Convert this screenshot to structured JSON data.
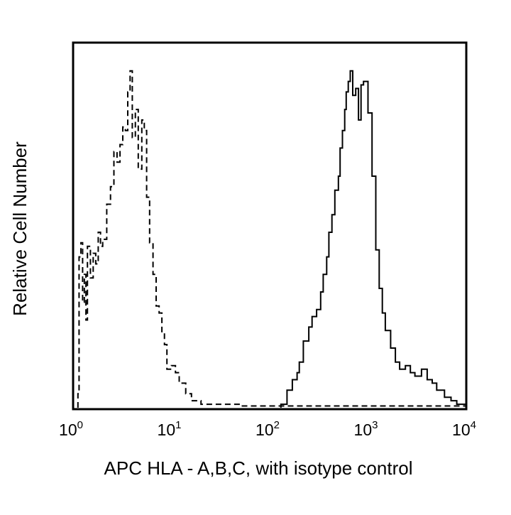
{
  "chart_data": {
    "type": "line",
    "title": "",
    "xlabel": "APC HLA - A,B,C, with isotype control",
    "ylabel": "Relative Cell Number",
    "x_scale": "log",
    "xlim": [
      1,
      10000
    ],
    "ylim": [
      0,
      100
    ],
    "grid": false,
    "legend": "none",
    "x_ticks": [
      {
        "base": "10",
        "exp": "0",
        "value": 1
      },
      {
        "base": "10",
        "exp": "1",
        "value": 10
      },
      {
        "base": "10",
        "exp": "2",
        "value": 100
      },
      {
        "base": "10",
        "exp": "3",
        "value": 1000
      },
      {
        "base": "10",
        "exp": "4",
        "value": 10000
      }
    ],
    "series": [
      {
        "style": "dashed",
        "color": "#000000",
        "x": [
          1.12,
          1.15,
          1.2,
          1.25,
          1.3,
          1.35,
          1.4,
          1.5,
          1.6,
          1.7,
          1.8,
          1.9,
          2.0,
          2.2,
          2.4,
          2.6,
          2.8,
          3.0,
          3.2,
          3.4,
          3.6,
          3.8,
          4.0,
          4.3,
          4.6,
          5.0,
          5.3,
          5.6,
          6.0,
          6.5,
          7.0,
          7.5,
          8.0,
          8.5,
          9.0,
          10.0,
          11,
          12,
          14,
          16,
          20,
          30,
          50,
          100,
          200,
          500,
          1000,
          3000,
          10000
        ],
        "y": [
          4,
          43,
          47,
          30,
          38,
          25,
          46,
          37,
          44,
          41,
          50,
          46,
          48,
          58,
          63,
          73,
          70,
          75,
          80,
          79,
          90,
          96,
          77,
          85,
          68,
          82,
          79,
          60,
          47,
          38,
          29,
          27,
          21,
          18,
          11,
          12,
          10,
          7,
          4,
          2,
          1,
          1,
          0.5,
          0.5,
          0.5,
          0.5,
          0.5,
          0.5,
          0.5
        ]
      },
      {
        "style": "solid",
        "color": "#000000",
        "x": [
          130,
          150,
          170,
          190,
          200,
          220,
          250,
          270,
          300,
          330,
          350,
          380,
          400,
          430,
          460,
          500,
          520,
          550,
          580,
          600,
          630,
          660,
          700,
          750,
          800,
          850,
          900,
          1000,
          1100,
          1200,
          1300,
          1400,
          1500,
          1700,
          1900,
          2100,
          2400,
          2700,
          3000,
          3500,
          4000,
          4500,
          5000,
          6000,
          7000,
          8000,
          9000,
          10000
        ],
        "y": [
          1,
          5,
          8,
          10,
          13,
          19,
          23,
          26,
          28,
          33,
          38,
          43,
          50,
          55,
          62,
          66,
          74,
          79,
          85,
          90,
          93,
          96,
          89,
          91,
          82,
          92,
          93,
          84,
          66,
          45,
          34,
          27,
          22,
          17,
          13,
          11,
          12,
          10,
          9,
          11,
          8,
          7,
          5,
          3,
          2,
          1,
          1,
          0.5
        ]
      }
    ]
  }
}
